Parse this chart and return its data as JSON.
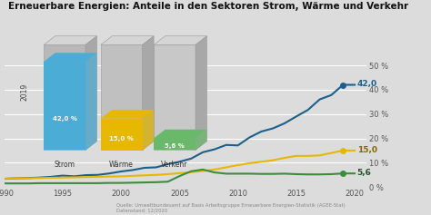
{
  "title": "Erneuerbare Energien: Anteile in den Sektoren Strom, Wärme und Verkehr",
  "background_color": "#dcdcdc",
  "years": [
    1990,
    1991,
    1992,
    1993,
    1994,
    1995,
    1996,
    1997,
    1998,
    1999,
    2000,
    2001,
    2002,
    2003,
    2004,
    2005,
    2006,
    2007,
    2008,
    2009,
    2010,
    2011,
    2012,
    2013,
    2014,
    2015,
    2016,
    2017,
    2018,
    2019,
    2020
  ],
  "strom": [
    3.4,
    3.6,
    3.7,
    3.9,
    4.2,
    4.7,
    4.4,
    4.9,
    5.0,
    5.6,
    6.4,
    7.0,
    7.9,
    8.1,
    9.4,
    10.4,
    11.7,
    14.3,
    15.5,
    17.3,
    17.1,
    20.4,
    22.8,
    24.1,
    26.2,
    29.0,
    31.7,
    36.0,
    37.8,
    42.0,
    42.0
  ],
  "waerme": [
    3.5,
    3.6,
    3.6,
    3.7,
    3.8,
    3.9,
    4.0,
    4.1,
    4.2,
    4.3,
    4.4,
    4.6,
    4.8,
    5.0,
    5.3,
    5.7,
    6.1,
    6.6,
    7.2,
    8.1,
    9.0,
    9.8,
    10.4,
    11.0,
    12.0,
    12.8,
    12.8,
    13.0,
    14.0,
    15.0,
    15.0
  ],
  "verkehr": [
    1.5,
    1.5,
    1.5,
    1.6,
    1.6,
    1.6,
    1.6,
    1.6,
    1.6,
    1.7,
    1.7,
    1.8,
    1.9,
    2.0,
    2.2,
    4.5,
    6.5,
    7.2,
    6.0,
    5.5,
    5.5,
    5.5,
    5.4,
    5.4,
    5.5,
    5.3,
    5.2,
    5.2,
    5.3,
    5.6,
    5.6
  ],
  "strom_color": "#1d5f8a",
  "waerme_color": "#e6b800",
  "verkehr_color": "#3d8c3d",
  "yticks": [
    0,
    10,
    20,
    30,
    40,
    50
  ],
  "ytick_labels": [
    "0 %",
    "10 %",
    "20 %",
    "30 %",
    "40 %",
    "50 %"
  ],
  "ylim": [
    0,
    53
  ],
  "xlim": [
    1990,
    2021
  ],
  "source_text": "Quelle: Umweltbundesamt auf Basis Arbeitsgruppe Erneuerbare Energien-Statistik (AGEE-Stat)\nDatenstand: 12/2020",
  "label_strom": "42,0",
  "label_waerme": "15,0",
  "label_verkehr": "5,6",
  "bar_configs": [
    {
      "label": "Strom",
      "pct": 42.0,
      "pct_text": "42,0 %",
      "fill_color": "#4badd6",
      "bar_color": "#b8b8b8"
    },
    {
      "label": "Wärme",
      "pct": 15.0,
      "pct_text": "15,0 %",
      "fill_color": "#e6b800",
      "bar_color": "#c0c0c0"
    },
    {
      "label": "Verkehr",
      "pct": 5.6,
      "pct_text": "5,6 %",
      "fill_color": "#6ab86a",
      "bar_color": "#c8c8c8"
    }
  ]
}
